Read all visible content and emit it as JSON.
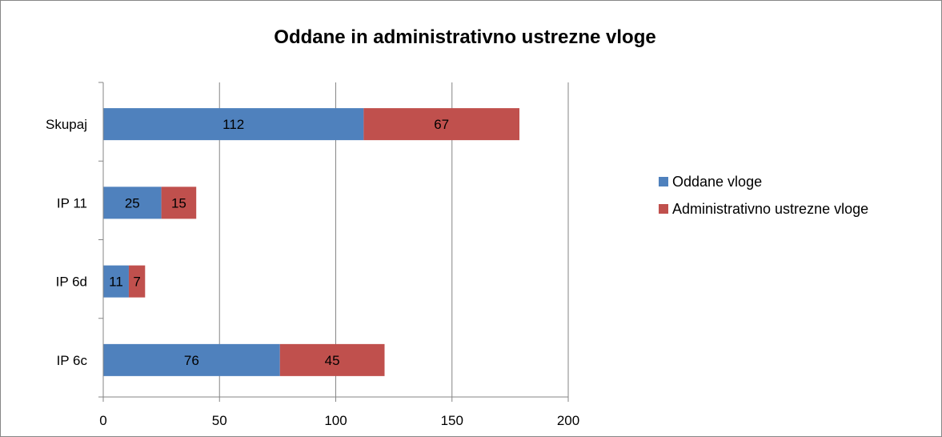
{
  "chart_data": {
    "type": "bar",
    "orientation": "horizontal",
    "stacked": true,
    "title": "Oddane in administrativno ustrezne vloge",
    "categories": [
      "Skupaj",
      "IP 11",
      "IP 6d",
      "IP 6c"
    ],
    "series": [
      {
        "name": "Oddane vloge",
        "values": [
          112,
          25,
          11,
          76
        ],
        "color": "#4F81BD"
      },
      {
        "name": "Administrativno ustrezne vloge",
        "values": [
          67,
          15,
          7,
          45
        ],
        "color": "#C0504D"
      }
    ],
    "xlim": [
      0,
      200
    ],
    "x_ticks": [
      0,
      50,
      100,
      150,
      200
    ],
    "grid": true,
    "legend_position": "right",
    "data_labels": true
  }
}
